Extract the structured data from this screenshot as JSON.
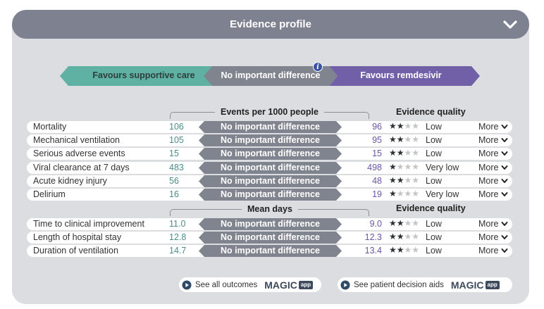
{
  "header": {
    "title": "Evidence profile"
  },
  "arrows": {
    "left": "Favours supportive care",
    "middle": "No important difference",
    "right": "Favours remdesivir"
  },
  "colors": {
    "panel": "#dcdde1",
    "header": "#7d8190",
    "teal": "#5fb1a3",
    "gray": "#80848f",
    "purple": "#7160a8",
    "info": "#3a52a6"
  },
  "section1": {
    "bracket_label": "Events per 1000 people",
    "quality_header": "Evidence quality",
    "rows": [
      {
        "outcome": "Mortality",
        "left": "106",
        "diff": "No important difference",
        "right": "96",
        "stars": 2,
        "quality": "Low",
        "more": "More"
      },
      {
        "outcome": "Mechanical ventilation",
        "left": "105",
        "diff": "No important difference",
        "right": "95",
        "stars": 2,
        "quality": "Low",
        "more": "More"
      },
      {
        "outcome": "Serious adverse events",
        "left": "15",
        "diff": "No important difference",
        "right": "15",
        "stars": 2,
        "quality": "Low",
        "more": "More"
      },
      {
        "outcome": "Viral clearance at 7 days",
        "left": "483",
        "diff": "No important difference",
        "right": "498",
        "stars": 1,
        "quality": "Very low",
        "more": "More"
      },
      {
        "outcome": "Acute kidney injury",
        "left": "56",
        "diff": "No important difference",
        "right": "48",
        "stars": 2,
        "quality": "Low",
        "more": "More"
      },
      {
        "outcome": "Delirium",
        "left": "16",
        "diff": "No important difference",
        "right": "19",
        "stars": 1,
        "quality": "Very low",
        "more": "More"
      }
    ]
  },
  "section2": {
    "bracket_label": "Mean days",
    "quality_header": "Evidence quality",
    "rows": [
      {
        "outcome": "Time to clinical improvement",
        "left": "11.0",
        "diff": "No important difference",
        "right": "9.0",
        "stars": 2,
        "quality": "Low",
        "more": "More"
      },
      {
        "outcome": "Length of hospital stay",
        "left": "12.8",
        "diff": "No important difference",
        "right": "12.3",
        "stars": 2,
        "quality": "Low",
        "more": "More"
      },
      {
        "outcome": "Duration of ventilation",
        "left": "14.7",
        "diff": "No important difference",
        "right": "13.4",
        "stars": 2,
        "quality": "Low",
        "more": "More"
      }
    ]
  },
  "footer": {
    "outcomes_label": "See all outcomes",
    "aids_label": "See patient decision aids",
    "logo_text": "MAGIC",
    "logo_badge": "app"
  }
}
